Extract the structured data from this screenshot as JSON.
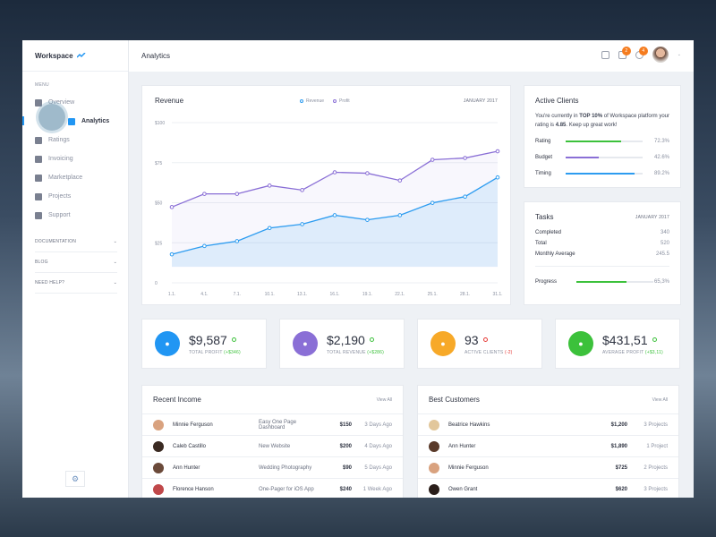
{
  "app": {
    "name": "Workspace"
  },
  "sidebar": {
    "menu_heading": "MENU",
    "items": [
      {
        "label": "Overview",
        "icon": "home-icon"
      },
      {
        "label": "Analytics",
        "icon": "bar-chart-icon",
        "active": true
      },
      {
        "label": "Ratings",
        "icon": "star-icon"
      },
      {
        "label": "Invoicing",
        "icon": "globe-icon"
      },
      {
        "label": "Marketplace",
        "icon": "briefcase-icon"
      },
      {
        "label": "Projects",
        "icon": "chat-icon"
      },
      {
        "label": "Support",
        "icon": "lifebuoy-icon"
      }
    ],
    "sections": [
      {
        "label": "DOCUMENTATION"
      },
      {
        "label": "BLOG"
      },
      {
        "label": "NEED HELP?"
      }
    ],
    "settings_icon": "gear-icon"
  },
  "header": {
    "title": "Analytics",
    "notifications": {
      "messages": "2",
      "alerts": "4"
    }
  },
  "revenue": {
    "title": "Revenue",
    "date": "JANUARY 2017"
  },
  "chart_data": {
    "type": "line",
    "title": "Revenue",
    "x": [
      "1.1.",
      "4.1.",
      "7.1.",
      "10.1.",
      "13.1.",
      "16.1.",
      "19.1.",
      "22.1.",
      "25.1.",
      "28.1.",
      "31.1."
    ],
    "yticks": [
      "0",
      "$25",
      "$50",
      "$75",
      "$100"
    ],
    "ylim": [
      0,
      100
    ],
    "grid": true,
    "legend": "top-center",
    "series": [
      {
        "name": "Revenue",
        "color": "#2d9cf0",
        "values": [
          17.8,
          23.0,
          26.0,
          34.2,
          36.6,
          42.2,
          39.3,
          42.2,
          49.9,
          53.8,
          65.8
        ]
      },
      {
        "name": "Profit",
        "color": "#8a6fd6",
        "values": [
          47.3,
          55.5,
          55.5,
          60.7,
          57.9,
          69.0,
          68.4,
          63.9,
          76.8,
          77.9,
          82.1
        ]
      }
    ]
  },
  "active_clients": {
    "title": "Active Clients",
    "text1": "You're currently in ",
    "strong1": "TOP 10%",
    "text2": " of Workspace platform your rating is ",
    "strong2": "4.85",
    "text3": ". Keep up great work!",
    "bars": [
      {
        "label": "Rating",
        "value": 72.3,
        "display": "72.3%",
        "color": "#3cc13b"
      },
      {
        "label": "Budget",
        "value": 42.6,
        "display": "42.6%",
        "color": "#8a6fd6"
      },
      {
        "label": "Timing",
        "value": 89.2,
        "display": "89.2%",
        "color": "#2d9cf0"
      }
    ]
  },
  "tasks": {
    "title": "Tasks",
    "date": "JANUARY 2017",
    "rows": [
      {
        "label": "Completed",
        "value": "340"
      },
      {
        "label": "Total",
        "value": "520"
      },
      {
        "label": "Monthly Average",
        "value": "245.5"
      }
    ],
    "progress": {
      "label": "Progress",
      "value": 65.3,
      "display": "65,3%",
      "color": "#3cc13b"
    }
  },
  "stats": [
    {
      "value": "$9,587",
      "label": "TOTAL PROFIT",
      "delta": "(+$346)",
      "trend": "up",
      "color": "#2196f3",
      "icon": "signal-icon"
    },
    {
      "value": "$2,190",
      "label": "TOTAL REVENUE",
      "delta": "(+$286)",
      "trend": "up",
      "color": "#8a6fd6",
      "icon": "pie-chart-icon"
    },
    {
      "value": "93",
      "label": "ACTIVE CLIENTS",
      "delta": "(-2)",
      "trend": "down",
      "color": "#f7a928",
      "icon": "user-icon"
    },
    {
      "value": "$431,51",
      "label": "AVERAGE PROFIT",
      "delta": "(+$3,11)",
      "trend": "up",
      "color": "#3cc13b",
      "icon": "chart-icon"
    }
  ],
  "recent_income": {
    "title": "Recent Income",
    "view_all": "View All",
    "rows": [
      {
        "name": "Minnie Ferguson",
        "project": "Easy One Page Dashboard",
        "amount": "$150",
        "time": "3 Days Ago"
      },
      {
        "name": "Caleb Castillo",
        "project": "New Website",
        "amount": "$200",
        "time": "4 Days Ago"
      },
      {
        "name": "Ann Hunter",
        "project": "Wedding Photography",
        "amount": "$90",
        "time": "5 Days Ago"
      },
      {
        "name": "Florence Hanson",
        "project": "One-Pager for iOS App",
        "amount": "$240",
        "time": "1 Week Ago"
      }
    ]
  },
  "best_customers": {
    "title": "Best Customers",
    "view_all": "View All",
    "rows": [
      {
        "name": "Beatrice Hawkins",
        "amount": "$1,200",
        "projects": "3 Projects"
      },
      {
        "name": "Ann Hunter",
        "amount": "$1,890",
        "projects": "1 Project"
      },
      {
        "name": "Minnie Ferguson",
        "amount": "$725",
        "projects": "2 Projects"
      },
      {
        "name": "Owen Grant",
        "amount": "$620",
        "projects": "3 Projects"
      }
    ]
  }
}
